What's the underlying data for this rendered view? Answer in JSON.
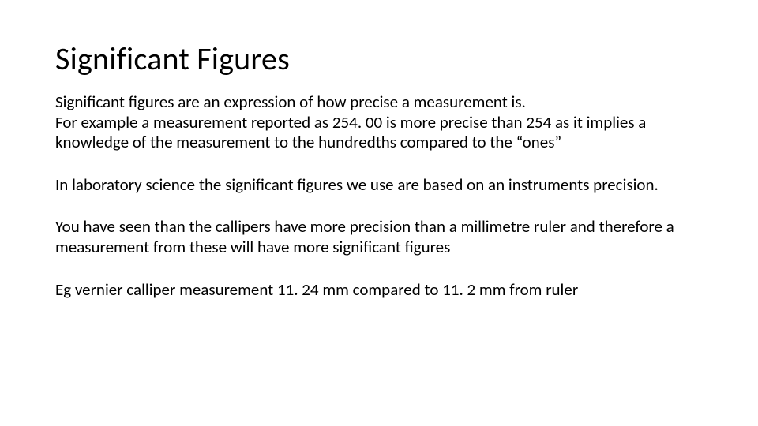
{
  "page": {
    "background_color": "#ffffff",
    "text_color": "#000000",
    "font_family": "Calibri"
  },
  "title": {
    "text": "Significant Figures",
    "fontsize": 40,
    "fontweight": 400
  },
  "body": {
    "fontsize": 21,
    "line_height": 1.22,
    "paragraphs": [
      "Significant figures are an expression of how precise a measurement is.",
      "For example a measurement reported as 254. 00 is more precise than 254 as it implies a knowledge of the measurement to the hundredths compared to the “ones”",
      "In laboratory science the significant figures we use are based on an instruments precision.",
      "You have seen than the callipers have more precision than a millimetre ruler and therefore a measurement from these will have more significant figures",
      "Eg vernier calliper measurement 11. 24 mm compared to 11. 2 mm from ruler"
    ]
  }
}
